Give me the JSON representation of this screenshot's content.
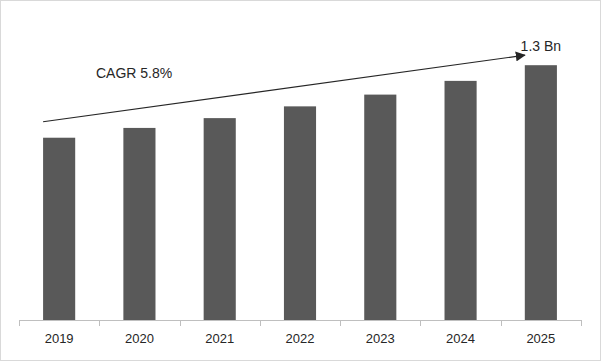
{
  "chart_data": {
    "type": "bar",
    "categories": [
      "2019",
      "2020",
      "2021",
      "2022",
      "2023",
      "2024",
      "2025"
    ],
    "values": [
      0.93,
      0.98,
      1.03,
      1.09,
      1.15,
      1.22,
      1.3
    ],
    "color": "#595959",
    "ylim": [
      0,
      1.5
    ],
    "tick_labels": "x",
    "grid": false,
    "annotations": [
      "CAGR 5.8%",
      "1.3 Bn"
    ]
  }
}
